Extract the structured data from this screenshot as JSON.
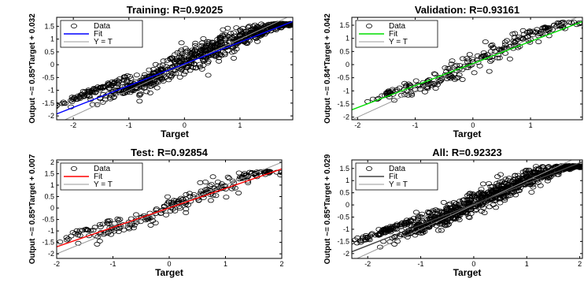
{
  "chart_data": [
    {
      "type": "scatter",
      "title": "Training: R=0.92025",
      "xlabel": "Target",
      "ylabel": "Output ~= 0.85*Target + 0.032",
      "xlim": [
        -2.3,
        1.95
      ],
      "ylim": [
        -2.15,
        1.85
      ],
      "xticks": [
        -2,
        -1,
        0,
        1
      ],
      "yticks": [
        -2,
        -1.5,
        -1,
        -0.5,
        0,
        0.5,
        1,
        1.5
      ],
      "fit": {
        "slope": 0.85,
        "intercept": 0.032,
        "color": "#0000ff"
      },
      "legend": [
        "Data",
        "Fit",
        "Y = T"
      ],
      "legend_position": "top-left",
      "clusters": [
        [
          -1.6,
          -1.0,
          0.35,
          0.1,
          90
        ],
        [
          -1.0,
          -0.9,
          0.3,
          0.2,
          90
        ],
        [
          -0.5,
          -0.45,
          0.3,
          0.35,
          110
        ],
        [
          0.1,
          0.2,
          0.35,
          0.4,
          130
        ],
        [
          0.6,
          0.7,
          0.3,
          0.4,
          120
        ],
        [
          1.2,
          1.2,
          0.35,
          0.3,
          140
        ],
        [
          1.65,
          1.5,
          0.25,
          0.12,
          120
        ]
      ]
    },
    {
      "type": "scatter",
      "title": "Validation: R=0.93161",
      "xlabel": "Target",
      "ylabel": "Output ~= 0.84*Target + 0.042",
      "xlim": [
        -2.1,
        1.9
      ],
      "ylim": [
        -2.1,
        1.8
      ],
      "xticks": [
        -2,
        -1,
        0,
        1
      ],
      "yticks": [
        -2,
        -1.5,
        -1,
        -0.5,
        0,
        0.5,
        1,
        1.5
      ],
      "fit": {
        "slope": 0.84,
        "intercept": 0.042,
        "color": "#00dd00"
      },
      "legend": [
        "Data",
        "Fit",
        "Y = T"
      ],
      "legend_position": "top-left",
      "clusters": [
        [
          -1.4,
          -1.05,
          0.3,
          0.12,
          35
        ],
        [
          -0.9,
          -0.85,
          0.3,
          0.2,
          35
        ],
        [
          -0.4,
          -0.35,
          0.3,
          0.3,
          40
        ],
        [
          0.2,
          0.3,
          0.3,
          0.35,
          45
        ],
        [
          0.8,
          0.9,
          0.3,
          0.35,
          45
        ],
        [
          1.4,
          1.45,
          0.3,
          0.15,
          50
        ]
      ]
    },
    {
      "type": "scatter",
      "title": "Test: R=0.92854",
      "xlabel": "Target",
      "ylabel": "Output ~= 0.85*Target + 0.007",
      "xlim": [
        -2,
        2
      ],
      "ylim": [
        -2.2,
        2.1
      ],
      "xticks": [
        -2,
        -1,
        0,
        1,
        2
      ],
      "yticks": [
        -2,
        -1.5,
        -1,
        -0.5,
        0,
        0.5,
        1,
        1.5,
        2
      ],
      "fit": {
        "slope": 0.85,
        "intercept": 0.007,
        "color": "#ff0000"
      },
      "legend": [
        "Data",
        "Fit",
        "Y = T"
      ],
      "legend_position": "top-left",
      "clusters": [
        [
          -1.5,
          -1.0,
          0.35,
          0.1,
          35
        ],
        [
          -0.9,
          -0.9,
          0.3,
          0.2,
          35
        ],
        [
          -0.3,
          -0.3,
          0.3,
          0.3,
          40
        ],
        [
          0.3,
          0.3,
          0.3,
          0.35,
          40
        ],
        [
          0.9,
          0.9,
          0.3,
          0.35,
          40
        ],
        [
          1.5,
          1.5,
          0.3,
          0.12,
          50
        ]
      ]
    },
    {
      "type": "scatter",
      "title": "All: R=0.92323",
      "xlabel": "Target",
      "ylabel": "Output ~= 0.85*Target + 0.029",
      "xlim": [
        -2.3,
        2.05
      ],
      "ylim": [
        -2.2,
        1.85
      ],
      "xticks": [
        -2,
        -1,
        0,
        1,
        2
      ],
      "yticks": [
        -2,
        -1.5,
        -1,
        -0.5,
        0,
        0.5,
        1,
        1.5
      ],
      "fit": {
        "slope": 0.85,
        "intercept": 0.029,
        "color": "#444444"
      },
      "legend": [
        "Data",
        "Fit",
        "Y = T"
      ],
      "legend_position": "top-left",
      "clusters": [
        [
          -1.6,
          -1.0,
          0.4,
          0.1,
          110
        ],
        [
          -1.0,
          -0.9,
          0.3,
          0.2,
          110
        ],
        [
          -0.5,
          -0.45,
          0.3,
          0.35,
          130
        ],
        [
          0.1,
          0.2,
          0.35,
          0.4,
          150
        ],
        [
          0.6,
          0.7,
          0.3,
          0.4,
          140
        ],
        [
          1.2,
          1.2,
          0.35,
          0.3,
          160
        ],
        [
          1.7,
          1.5,
          0.3,
          0.12,
          150
        ]
      ]
    }
  ]
}
